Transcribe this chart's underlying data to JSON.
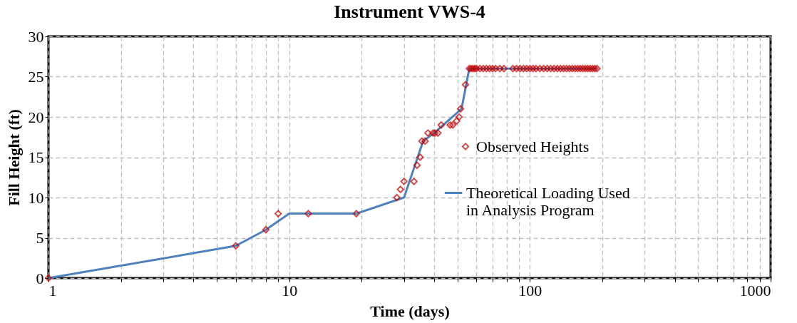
{
  "chart_data": {
    "type": "scatter",
    "title": "Instrument VWS-4",
    "xlabel": "Time (days)",
    "ylabel": "Fill Height (ft)",
    "log": "x",
    "xlim": [
      1,
      1000
    ],
    "ylim": [
      0,
      30
    ],
    "xticks": [
      1,
      {
        "value": 2,
        "label": null
      },
      {
        "value": 3,
        "label": null
      },
      {
        "value": 4,
        "label": null
      },
      {
        "value": 5,
        "label": null
      },
      {
        "value": 6,
        "label": null
      },
      {
        "value": 7,
        "label": null
      },
      {
        "value": 8,
        "label": null
      },
      {
        "value": 9,
        "label": null
      },
      10,
      {
        "value": 20,
        "label": null
      },
      {
        "value": 30,
        "label": null
      },
      {
        "value": 40,
        "label": null
      },
      {
        "value": 50,
        "label": null
      },
      {
        "value": 60,
        "label": null
      },
      {
        "value": 70,
        "label": null
      },
      {
        "value": 80,
        "label": null
      },
      {
        "value": 90,
        "label": null
      },
      100,
      {
        "value": 200,
        "label": null
      },
      {
        "value": 300,
        "label": null
      },
      {
        "value": 400,
        "label": null
      },
      {
        "value": 500,
        "label": null
      },
      {
        "value": 600,
        "label": null
      },
      {
        "value": 700,
        "label": null
      },
      {
        "value": 800,
        "label": null
      },
      {
        "value": 900,
        "label": null
      },
      1000
    ],
    "yticks": [
      0,
      5,
      10,
      15,
      20,
      25,
      30
    ],
    "grid": true,
    "legend": "right",
    "series": [
      {
        "name": "Observed Heights",
        "marker": "diamond",
        "color": "#c00000",
        "x": [
          1,
          6,
          8,
          9,
          12,
          19,
          28,
          29,
          30,
          33,
          34,
          35,
          35.6,
          36.7,
          37.7,
          39.6,
          40.3,
          41.5,
          42.8,
          46.6,
          47.8,
          49.6,
          50.8,
          51.5,
          54,
          56,
          57,
          58,
          59,
          60,
          62,
          64,
          66,
          68,
          70,
          72,
          75,
          78,
          85,
          88,
          91,
          94,
          97,
          100,
          103,
          106,
          110,
          114,
          118,
          122,
          126,
          130,
          134,
          138,
          142,
          146,
          150,
          154,
          158,
          162,
          166,
          170,
          174,
          178,
          182,
          186,
          190
        ],
        "values": [
          0,
          4,
          6,
          8,
          8,
          8,
          10,
          11,
          12,
          12,
          14,
          15,
          17,
          17,
          18,
          18,
          18,
          18,
          19,
          19,
          19,
          19.5,
          20,
          21,
          24,
          26,
          26,
          26,
          26,
          26,
          26,
          26,
          26,
          26,
          26,
          26,
          26,
          26,
          26,
          26,
          26,
          26,
          26,
          26,
          26,
          26,
          26,
          26,
          26,
          26,
          26,
          26,
          26,
          26,
          26,
          26,
          26,
          26,
          26,
          26,
          26,
          26,
          26,
          26,
          26,
          26,
          26
        ]
      },
      {
        "name": "Theoretical Loading Used in Analysis Program",
        "type": "line",
        "color": "#4f81bd",
        "x": [
          1,
          6,
          8,
          10,
          19,
          30,
          36,
          40,
          52,
          56,
          190
        ],
        "values": [
          0,
          4,
          6,
          8,
          8,
          10,
          17,
          18,
          21,
          26,
          26
        ]
      }
    ]
  }
}
